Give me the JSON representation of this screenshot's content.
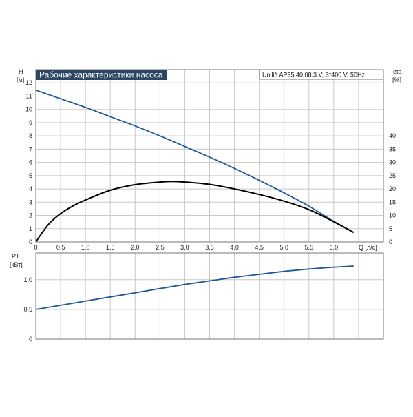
{
  "title": "Рабочие характеристики насоса",
  "pump_label": "Unilift AP35.40.08.3.V, 3*400 V, 50Hz",
  "colors": {
    "head_curve": "#1f5a96",
    "efficiency_curve": "#000000",
    "power_curve": "#1f5a96",
    "title_bg": "#2c4560",
    "grid": "#c8c8c8",
    "frame": "#777777"
  },
  "chart_data": [
    {
      "type": "line",
      "name": "head-efficiency-chart",
      "xlabel": "Q [л/с]",
      "ylabel_left": [
        "H",
        "[м]"
      ],
      "ylabel_right": [
        "eta",
        "[%]"
      ],
      "xlim": [
        0,
        7.0
      ],
      "ylim_left": [
        0,
        13
      ],
      "ylim_right": [
        0,
        65
      ],
      "x_ticks": [
        "0",
        "0,5",
        "1,0",
        "1,5",
        "2,0",
        "2,5",
        "3,0",
        "3,5",
        "4,0",
        "4,5",
        "5,0",
        "5,5",
        "6,0"
      ],
      "y_ticks_left": [
        "0",
        "1",
        "2",
        "3",
        "4",
        "5",
        "6",
        "7",
        "8",
        "9",
        "10",
        "11",
        "12"
      ],
      "y_ticks_right": [
        "0",
        "5",
        "10",
        "15",
        "20",
        "25",
        "30",
        "35",
        "40"
      ],
      "grid": true,
      "series": [
        {
          "axis": "left",
          "x": [
            0,
            0.5,
            1.0,
            1.5,
            2.0,
            2.5,
            3.0,
            3.5,
            4.0,
            4.5,
            5.0,
            5.5,
            6.0,
            6.4
          ],
          "y": [
            11.45,
            10.8,
            10.15,
            9.45,
            8.75,
            8.0,
            7.2,
            6.4,
            5.55,
            4.65,
            3.7,
            2.7,
            1.55,
            0.72
          ]
        },
        {
          "axis": "right",
          "x": [
            0,
            0.25,
            0.5,
            0.75,
            1.0,
            1.5,
            2.0,
            2.5,
            2.75,
            3.0,
            3.5,
            4.0,
            4.5,
            5.0,
            5.5,
            6.0,
            6.4
          ],
          "y": [
            0,
            6.5,
            10.7,
            13.6,
            15.8,
            19.5,
            21.6,
            22.6,
            22.8,
            22.6,
            21.7,
            20.0,
            17.9,
            15.4,
            12.2,
            7.6,
            3.6
          ]
        }
      ]
    },
    {
      "type": "line",
      "name": "power-chart",
      "ylabel": [
        "P1",
        "[кВт]"
      ],
      "xlim": [
        0,
        7.0
      ],
      "ylim": [
        0,
        1.45
      ],
      "y_ticks": [
        "0",
        "0,5",
        "1,0"
      ],
      "grid": true,
      "series": [
        {
          "x": [
            0,
            0.5,
            1.0,
            1.5,
            2.0,
            2.5,
            3.0,
            3.5,
            4.0,
            4.5,
            5.0,
            5.5,
            6.0,
            6.4
          ],
          "y": [
            0.5,
            0.57,
            0.64,
            0.71,
            0.78,
            0.85,
            0.92,
            0.98,
            1.04,
            1.09,
            1.14,
            1.18,
            1.21,
            1.23
          ]
        }
      ]
    }
  ]
}
